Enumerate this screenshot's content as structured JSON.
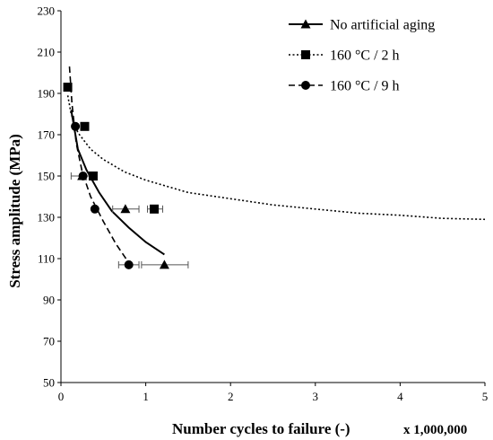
{
  "chart_data": {
    "type": "scatter",
    "xlabel": "Number cycles to failure (-)",
    "x_multiplier_label": "x 1,000,000",
    "ylabel": "Stress amplitude (MPa)",
    "xlim": [
      0,
      5
    ],
    "ylim": [
      50,
      230
    ],
    "x_ticks": [
      "0",
      "1",
      "2",
      "3",
      "4",
      "5"
    ],
    "y_ticks": [
      "50",
      "70",
      "90",
      "110",
      "130",
      "150",
      "170",
      "190",
      "210",
      "230"
    ],
    "grid": false,
    "legend_position": "top-right",
    "series": [
      {
        "name": "No artificial aging",
        "marker": "triangle",
        "line_style": "solid",
        "points": [
          {
            "x": 0.25,
            "y": 150,
            "xerr": [
              0.12,
              0.35
            ]
          },
          {
            "x": 0.76,
            "y": 134,
            "xerr": [
              0.61,
              0.92
            ]
          },
          {
            "x": 1.22,
            "y": 107,
            "xerr": [
              0.95,
              1.5
            ]
          }
        ],
        "trend": [
          [
            0.12,
            182
          ],
          [
            0.2,
            163
          ],
          [
            0.3,
            153
          ],
          [
            0.45,
            142
          ],
          [
            0.6,
            133
          ],
          [
            0.8,
            125
          ],
          [
            1.0,
            118
          ],
          [
            1.22,
            112
          ]
        ]
      },
      {
        "name": "160 °C / 2 h",
        "marker": "square",
        "line_style": "dotted",
        "points": [
          {
            "x": 0.08,
            "y": 193,
            "xerr": null
          },
          {
            "x": 0.28,
            "y": 174,
            "xerr": null
          },
          {
            "x": 0.38,
            "y": 150,
            "xerr": null
          },
          {
            "x": 1.1,
            "y": 134,
            "xerr": [
              1.02,
              1.2
            ]
          }
        ],
        "trend": [
          [
            0.08,
            189
          ],
          [
            0.12,
            180
          ],
          [
            0.2,
            171
          ],
          [
            0.35,
            163
          ],
          [
            0.5,
            158
          ],
          [
            0.75,
            152
          ],
          [
            1.0,
            148
          ],
          [
            1.5,
            142
          ],
          [
            2.0,
            139
          ],
          [
            2.5,
            136
          ],
          [
            3.0,
            134
          ],
          [
            3.5,
            132
          ],
          [
            4.0,
            131
          ],
          [
            4.5,
            129.5
          ],
          [
            5.0,
            129
          ]
        ]
      },
      {
        "name": "160 °C / 9 h",
        "marker": "circle",
        "line_style": "dashed",
        "points": [
          {
            "x": 0.17,
            "y": 174,
            "xerr": null
          },
          {
            "x": 0.26,
            "y": 150,
            "xerr": null
          },
          {
            "x": 0.4,
            "y": 134,
            "xerr": null
          },
          {
            "x": 0.8,
            "y": 107,
            "xerr": [
              0.68,
              0.92
            ]
          }
        ],
        "trend": [
          [
            0.1,
            203
          ],
          [
            0.13,
            185
          ],
          [
            0.18,
            166
          ],
          [
            0.25,
            152
          ],
          [
            0.35,
            140
          ],
          [
            0.5,
            128
          ],
          [
            0.65,
            117
          ],
          [
            0.8,
            108
          ]
        ]
      }
    ]
  }
}
